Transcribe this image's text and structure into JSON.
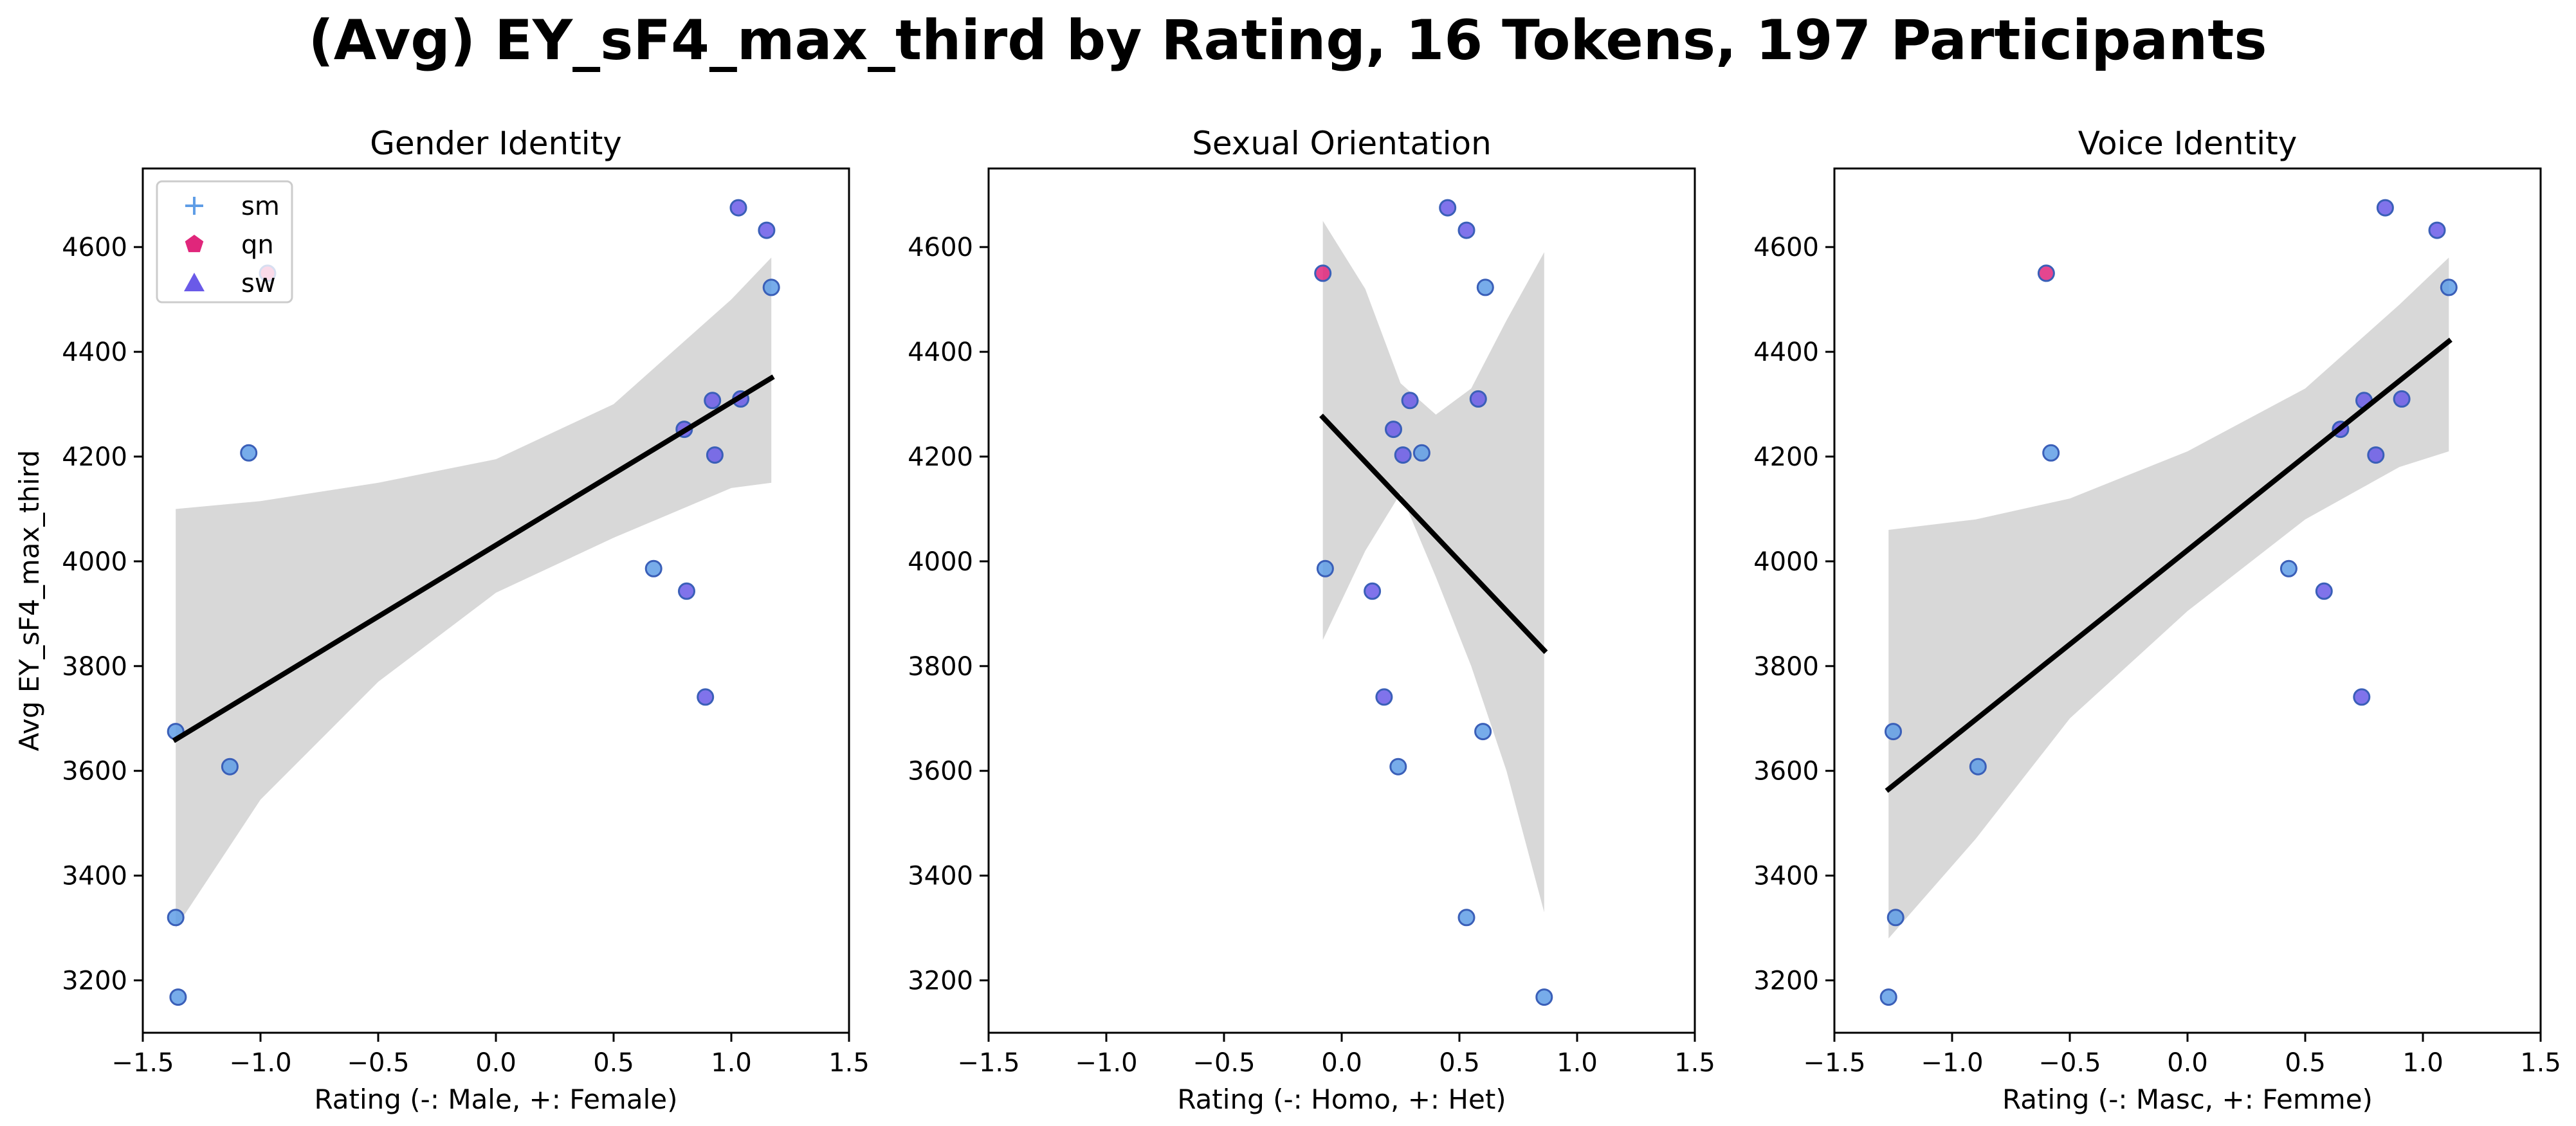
{
  "suptitle": "(Avg) EY_sF4_max_third by Rating, 16 Tokens, 197 Participants",
  "colors": {
    "sm": "#5f9de6",
    "qn": "#e0267b",
    "sw": "#6a5ae8",
    "band": "#d8d8d8",
    "regression": "#000000",
    "marker_edge": "#3a5fb8"
  },
  "legend": {
    "position": "upper-left of first panel",
    "entries": [
      {
        "label": "sm",
        "marker": "plus",
        "color": "#5f9de6"
      },
      {
        "label": "qn",
        "marker": "pentagon",
        "color": "#e0267b"
      },
      {
        "label": "sw",
        "marker": "triangle",
        "color": "#6a5ae8"
      }
    ]
  },
  "chart_data": [
    {
      "type": "scatter",
      "title": "Gender Identity",
      "xlabel": "Rating (-: Male, +: Female)",
      "ylabel": "Avg EY_sF4_max_third",
      "xlim": [
        -1.5,
        1.5
      ],
      "ylim": [
        3100,
        4750
      ],
      "xticks": [
        -1.5,
        -1.0,
        -0.5,
        0.0,
        0.5,
        1.0,
        1.5
      ],
      "xtick_labels": [
        "−1.5",
        "−1.0",
        "−0.5",
        "0.0",
        "0.5",
        "1.0",
        "1.5"
      ],
      "yticks": [
        3200,
        3400,
        3600,
        3800,
        4000,
        4200,
        4400,
        4600
      ],
      "ytick_labels": [
        "3200",
        "3400",
        "3600",
        "3800",
        "4000",
        "4200",
        "4400",
        "4600"
      ],
      "points": [
        {
          "x": -1.36,
          "y": 3675,
          "group": "sm"
        },
        {
          "x": -1.36,
          "y": 3320,
          "group": "sm"
        },
        {
          "x": -1.35,
          "y": 3168,
          "group": "sm"
        },
        {
          "x": -1.13,
          "y": 3608,
          "group": "sm"
        },
        {
          "x": -1.05,
          "y": 4207,
          "group": "sm"
        },
        {
          "x": -0.97,
          "y": 4550,
          "group": "qn"
        },
        {
          "x": 0.67,
          "y": 3986,
          "group": "sm"
        },
        {
          "x": 0.8,
          "y": 4252,
          "group": "sw"
        },
        {
          "x": 0.81,
          "y": 3943,
          "group": "sw"
        },
        {
          "x": 0.89,
          "y": 3741,
          "group": "sw"
        },
        {
          "x": 0.92,
          "y": 4307,
          "group": "sw"
        },
        {
          "x": 0.93,
          "y": 4203,
          "group": "sw"
        },
        {
          "x": 1.03,
          "y": 4675,
          "group": "sw"
        },
        {
          "x": 1.04,
          "y": 4310,
          "group": "sw"
        },
        {
          "x": 1.15,
          "y": 4632,
          "group": "sw"
        },
        {
          "x": 1.17,
          "y": 4523,
          "group": "sm"
        }
      ],
      "regression": {
        "x": [
          -1.36,
          1.17
        ],
        "y": [
          3660,
          4350
        ]
      },
      "ci_band": {
        "x": [
          -1.36,
          -1.0,
          -0.5,
          0.0,
          0.5,
          1.0,
          1.17
        ],
        "lower": [
          3300,
          3545,
          3770,
          3940,
          4045,
          4140,
          4150
        ],
        "upper": [
          4100,
          4115,
          4150,
          4195,
          4300,
          4500,
          4580
        ]
      }
    },
    {
      "type": "scatter",
      "title": "Sexual Orientation",
      "xlabel": "Rating (-: Homo, +: Het)",
      "ylabel": "",
      "xlim": [
        -1.5,
        1.5
      ],
      "ylim": [
        3100,
        4750
      ],
      "xticks": [
        -1.5,
        -1.0,
        -0.5,
        0.0,
        0.5,
        1.0,
        1.5
      ],
      "xtick_labels": [
        "−1.5",
        "−1.0",
        "−0.5",
        "0.0",
        "0.5",
        "1.0",
        "1.5"
      ],
      "yticks": [
        3200,
        3400,
        3600,
        3800,
        4000,
        4200,
        4400,
        4600
      ],
      "ytick_labels": [
        "3200",
        "3400",
        "3600",
        "3800",
        "4000",
        "4200",
        "4400",
        "4600"
      ],
      "points": [
        {
          "x": -0.08,
          "y": 4550,
          "group": "qn"
        },
        {
          "x": -0.07,
          "y": 3986,
          "group": "sm"
        },
        {
          "x": 0.13,
          "y": 3943,
          "group": "sw"
        },
        {
          "x": 0.18,
          "y": 3741,
          "group": "sw"
        },
        {
          "x": 0.22,
          "y": 4252,
          "group": "sw"
        },
        {
          "x": 0.24,
          "y": 3608,
          "group": "sm"
        },
        {
          "x": 0.26,
          "y": 4203,
          "group": "sw"
        },
        {
          "x": 0.29,
          "y": 4307,
          "group": "sw"
        },
        {
          "x": 0.34,
          "y": 4207,
          "group": "sm"
        },
        {
          "x": 0.45,
          "y": 4675,
          "group": "sw"
        },
        {
          "x": 0.53,
          "y": 4632,
          "group": "sw"
        },
        {
          "x": 0.53,
          "y": 3320,
          "group": "sm"
        },
        {
          "x": 0.58,
          "y": 4310,
          "group": "sw"
        },
        {
          "x": 0.6,
          "y": 3675,
          "group": "sm"
        },
        {
          "x": 0.61,
          "y": 4523,
          "group": "sm"
        },
        {
          "x": 0.86,
          "y": 3168,
          "group": "sm"
        }
      ],
      "regression": {
        "x": [
          -0.08,
          0.86
        ],
        "y": [
          4275,
          3830
        ]
      },
      "ci_band": {
        "x": [
          -0.08,
          0.1,
          0.25,
          0.4,
          0.55,
          0.7,
          0.86
        ],
        "lower": [
          3850,
          4020,
          4130,
          3970,
          3800,
          3600,
          3330
        ],
        "upper": [
          4650,
          4520,
          4340,
          4280,
          4330,
          4460,
          4590
        ]
      }
    },
    {
      "type": "scatter",
      "title": "Voice Identity",
      "xlabel": "Rating (-: Masc, +: Femme)",
      "ylabel": "",
      "xlim": [
        -1.5,
        1.5
      ],
      "ylim": [
        3100,
        4750
      ],
      "xticks": [
        -1.5,
        -1.0,
        -0.5,
        0.0,
        0.5,
        1.0,
        1.5
      ],
      "xtick_labels": [
        "−1.5",
        "−1.0",
        "−0.5",
        "0.0",
        "0.5",
        "1.0",
        "1.5"
      ],
      "yticks": [
        3200,
        3400,
        3600,
        3800,
        4000,
        4200,
        4400,
        4600
      ],
      "ytick_labels": [
        "3200",
        "3400",
        "3600",
        "3800",
        "4000",
        "4200",
        "4400",
        "4600"
      ],
      "points": [
        {
          "x": -1.27,
          "y": 3168,
          "group": "sm"
        },
        {
          "x": -1.25,
          "y": 3675,
          "group": "sm"
        },
        {
          "x": -1.24,
          "y": 3320,
          "group": "sm"
        },
        {
          "x": -0.89,
          "y": 3608,
          "group": "sm"
        },
        {
          "x": -0.6,
          "y": 4550,
          "group": "qn"
        },
        {
          "x": -0.58,
          "y": 4207,
          "group": "sm"
        },
        {
          "x": 0.43,
          "y": 3986,
          "group": "sm"
        },
        {
          "x": 0.58,
          "y": 3943,
          "group": "sw"
        },
        {
          "x": 0.65,
          "y": 4252,
          "group": "sw"
        },
        {
          "x": 0.74,
          "y": 3741,
          "group": "sw"
        },
        {
          "x": 0.75,
          "y": 4307,
          "group": "sw"
        },
        {
          "x": 0.8,
          "y": 4203,
          "group": "sw"
        },
        {
          "x": 0.84,
          "y": 4675,
          "group": "sw"
        },
        {
          "x": 0.91,
          "y": 4310,
          "group": "sw"
        },
        {
          "x": 1.06,
          "y": 4632,
          "group": "sw"
        },
        {
          "x": 1.11,
          "y": 4523,
          "group": "sm"
        }
      ],
      "regression": {
        "x": [
          -1.27,
          1.11
        ],
        "y": [
          3565,
          4420
        ]
      },
      "ci_band": {
        "x": [
          -1.27,
          -0.9,
          -0.5,
          0.0,
          0.5,
          0.9,
          1.11
        ],
        "lower": [
          3280,
          3470,
          3700,
          3905,
          4080,
          4180,
          4210
        ],
        "upper": [
          4060,
          4080,
          4120,
          4210,
          4330,
          4490,
          4580
        ]
      }
    }
  ]
}
